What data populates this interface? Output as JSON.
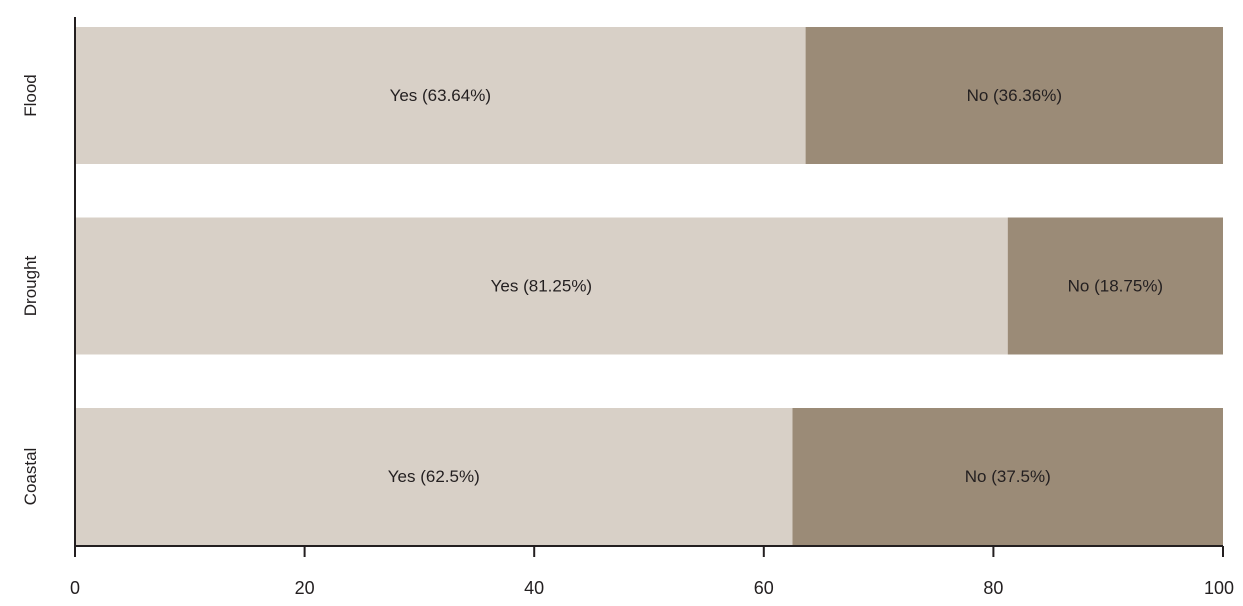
{
  "chart_data": {
    "type": "bar",
    "orientation": "horizontal",
    "stacked": true,
    "categories": [
      "Flood",
      "Drought",
      "Coastal"
    ],
    "series": [
      {
        "key": "yes",
        "values": [
          63.64,
          81.25,
          62.5
        ],
        "labels": [
          "Yes (63.64%)",
          "Yes (81.25%)",
          "Yes (62.5%)"
        ],
        "color": "#d8d0c7"
      },
      {
        "key": "no",
        "values": [
          36.36,
          18.75,
          37.5
        ],
        "labels": [
          "No (36.36%)",
          "No (18.75%)",
          "No (37.5%)"
        ],
        "color": "#9b8b77"
      }
    ],
    "xlim": [
      0,
      100
    ],
    "x_ticks": [
      "0",
      "20",
      "40",
      "60",
      "80",
      "100"
    ],
    "title": "",
    "xlabel": "",
    "ylabel": "",
    "grid": false,
    "legend": "none"
  }
}
